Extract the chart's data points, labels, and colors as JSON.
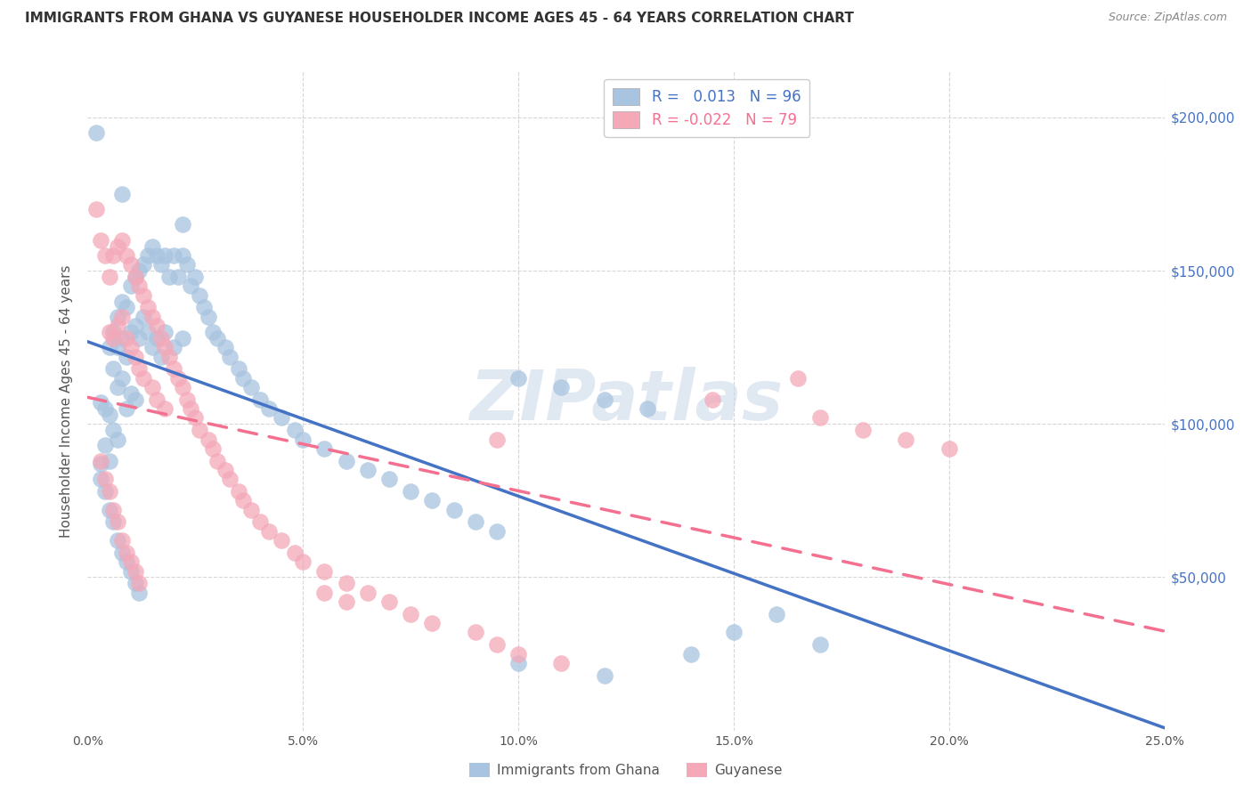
{
  "title": "IMMIGRANTS FROM GHANA VS GUYANESE HOUSEHOLDER INCOME AGES 45 - 64 YEARS CORRELATION CHART",
  "source": "Source: ZipAtlas.com",
  "ylabel": "Householder Income Ages 45 - 64 years",
  "y_ticks": [
    0,
    50000,
    100000,
    150000,
    200000
  ],
  "y_tick_labels": [
    "",
    "$50,000",
    "$100,000",
    "$150,000",
    "$200,000"
  ],
  "xlim": [
    0.0,
    0.25
  ],
  "ylim": [
    0,
    215000
  ],
  "ghana_R": 0.013,
  "ghana_N": 96,
  "guyanese_R": -0.022,
  "guyanese_N": 79,
  "ghana_color": "#a8c4e0",
  "guyanese_color": "#f4a8b8",
  "ghana_line_color": "#4472c4",
  "guyanese_line_color": "#f47090",
  "legend_label_ghana": "Immigrants from Ghana",
  "legend_label_guyanese": "Guyanese",
  "background_color": "#ffffff",
  "grid_color": "#cccccc",
  "title_color": "#333333",
  "watermark_text": "ZIPatlas",
  "watermark_color": "#c8d8e8",
  "ghana_x": [
    0.002,
    0.003,
    0.003,
    0.004,
    0.004,
    0.005,
    0.005,
    0.005,
    0.006,
    0.006,
    0.006,
    0.007,
    0.007,
    0.007,
    0.007,
    0.008,
    0.008,
    0.008,
    0.009,
    0.009,
    0.009,
    0.01,
    0.01,
    0.01,
    0.011,
    0.011,
    0.011,
    0.012,
    0.012,
    0.013,
    0.013,
    0.014,
    0.014,
    0.015,
    0.015,
    0.016,
    0.016,
    0.017,
    0.017,
    0.018,
    0.018,
    0.019,
    0.02,
    0.02,
    0.021,
    0.022,
    0.022,
    0.023,
    0.024,
    0.025,
    0.026,
    0.027,
    0.028,
    0.029,
    0.03,
    0.032,
    0.033,
    0.035,
    0.036,
    0.038,
    0.04,
    0.042,
    0.045,
    0.048,
    0.05,
    0.055,
    0.06,
    0.065,
    0.07,
    0.075,
    0.08,
    0.085,
    0.09,
    0.095,
    0.1,
    0.11,
    0.12,
    0.13,
    0.008,
    0.022,
    0.003,
    0.004,
    0.005,
    0.006,
    0.007,
    0.008,
    0.009,
    0.01,
    0.011,
    0.012,
    0.14,
    0.15,
    0.16,
    0.17,
    0.1,
    0.12
  ],
  "ghana_y": [
    195000,
    107000,
    87000,
    105000,
    93000,
    125000,
    103000,
    88000,
    130000,
    118000,
    98000,
    135000,
    125000,
    112000,
    95000,
    140000,
    128000,
    115000,
    138000,
    122000,
    105000,
    145000,
    130000,
    110000,
    148000,
    132000,
    108000,
    150000,
    128000,
    152000,
    135000,
    155000,
    130000,
    158000,
    125000,
    155000,
    128000,
    152000,
    122000,
    155000,
    130000,
    148000,
    155000,
    125000,
    148000,
    155000,
    128000,
    152000,
    145000,
    148000,
    142000,
    138000,
    135000,
    130000,
    128000,
    125000,
    122000,
    118000,
    115000,
    112000,
    108000,
    105000,
    102000,
    98000,
    95000,
    92000,
    88000,
    85000,
    82000,
    78000,
    75000,
    72000,
    68000,
    65000,
    115000,
    112000,
    108000,
    105000,
    175000,
    165000,
    82000,
    78000,
    72000,
    68000,
    62000,
    58000,
    55000,
    52000,
    48000,
    45000,
    25000,
    32000,
    38000,
    28000,
    22000,
    18000
  ],
  "guyanese_x": [
    0.002,
    0.003,
    0.004,
    0.005,
    0.005,
    0.006,
    0.006,
    0.007,
    0.007,
    0.008,
    0.008,
    0.009,
    0.009,
    0.01,
    0.01,
    0.011,
    0.011,
    0.012,
    0.012,
    0.013,
    0.013,
    0.014,
    0.015,
    0.015,
    0.016,
    0.016,
    0.017,
    0.018,
    0.018,
    0.019,
    0.02,
    0.021,
    0.022,
    0.023,
    0.024,
    0.025,
    0.026,
    0.028,
    0.029,
    0.03,
    0.032,
    0.033,
    0.035,
    0.036,
    0.038,
    0.04,
    0.042,
    0.045,
    0.048,
    0.05,
    0.055,
    0.06,
    0.065,
    0.07,
    0.075,
    0.08,
    0.09,
    0.095,
    0.1,
    0.11,
    0.003,
    0.004,
    0.005,
    0.006,
    0.007,
    0.008,
    0.009,
    0.01,
    0.011,
    0.012,
    0.055,
    0.165,
    0.145,
    0.095,
    0.06,
    0.17,
    0.18,
    0.19,
    0.2
  ],
  "guyanese_y": [
    170000,
    160000,
    155000,
    148000,
    130000,
    155000,
    128000,
    158000,
    132000,
    160000,
    135000,
    155000,
    128000,
    152000,
    125000,
    148000,
    122000,
    145000,
    118000,
    142000,
    115000,
    138000,
    135000,
    112000,
    132000,
    108000,
    128000,
    125000,
    105000,
    122000,
    118000,
    115000,
    112000,
    108000,
    105000,
    102000,
    98000,
    95000,
    92000,
    88000,
    85000,
    82000,
    78000,
    75000,
    72000,
    68000,
    65000,
    62000,
    58000,
    55000,
    52000,
    48000,
    45000,
    42000,
    38000,
    35000,
    32000,
    28000,
    25000,
    22000,
    88000,
    82000,
    78000,
    72000,
    68000,
    62000,
    58000,
    55000,
    52000,
    48000,
    45000,
    115000,
    108000,
    95000,
    42000,
    102000,
    98000,
    95000,
    92000
  ]
}
